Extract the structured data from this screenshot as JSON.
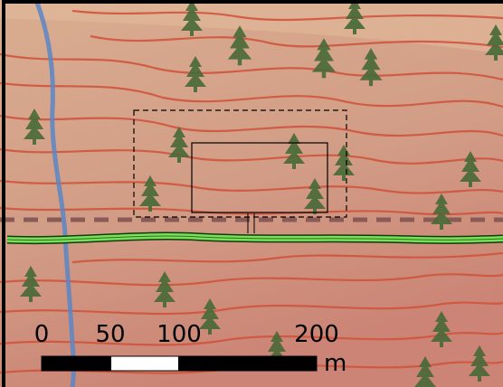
{
  "map": {
    "colors": {
      "terrain_top": "#d9ad90",
      "terrain_mid": "#d29d86",
      "terrain_bottom": "#cb8475",
      "contour": "#d0553e",
      "tree": "#4a6a38",
      "stream": "#5b86c6",
      "trail": "#8a5a57",
      "road_fill": "#7ae05c",
      "road_edge": "#0c3d0a",
      "frame": "#000000",
      "scale_dark": "#000000",
      "scale_light": "#ffffff"
    }
  },
  "scale_bar": {
    "ticks": [
      "0",
      "50",
      "100",
      "200"
    ],
    "unit": "m"
  }
}
